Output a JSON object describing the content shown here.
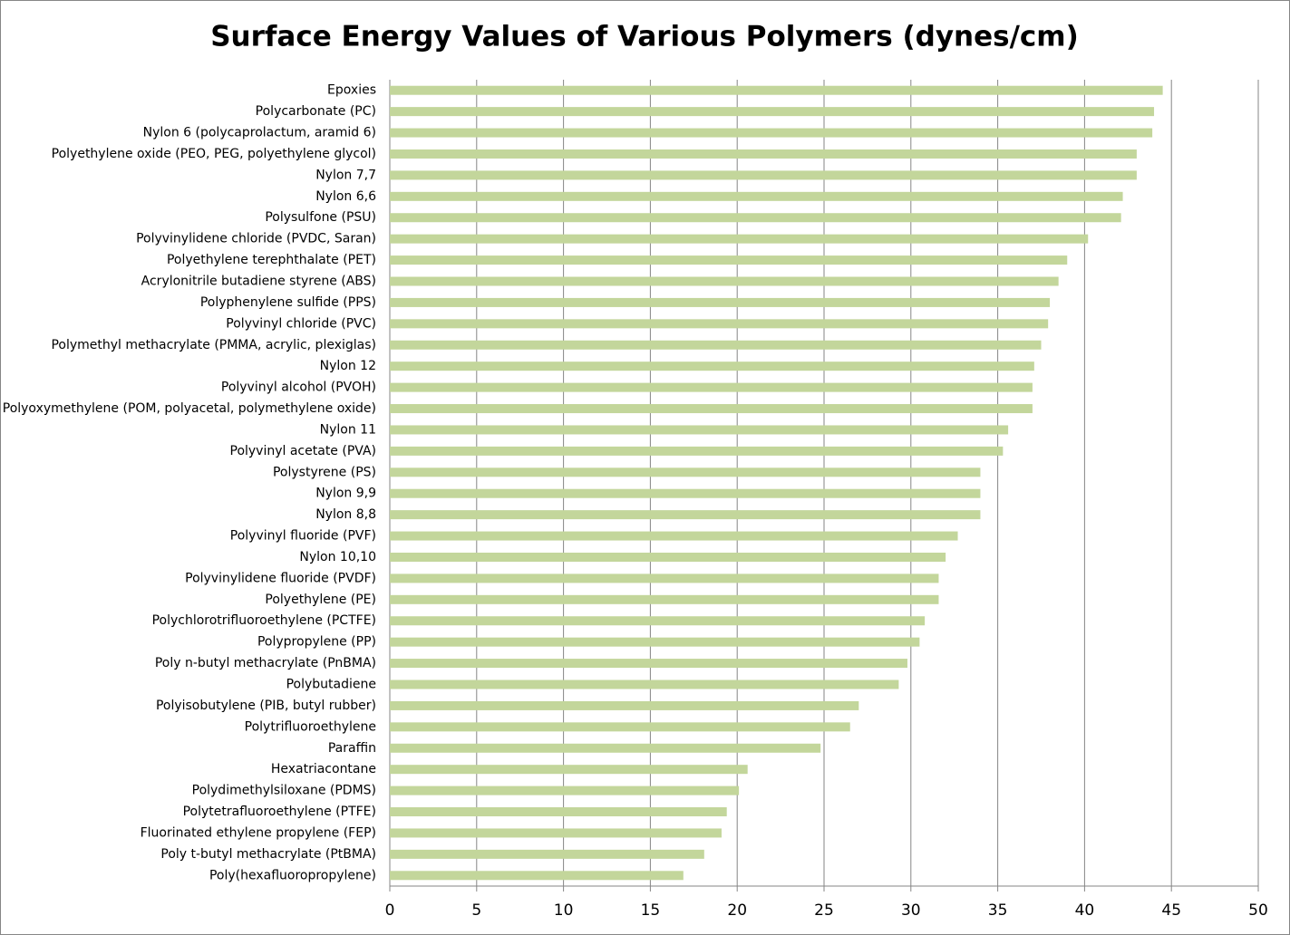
{
  "chart_data": {
    "type": "bar",
    "orientation": "horizontal",
    "title": "Surface Energy Values of Various Polymers (dynes/cm)",
    "categories": [
      "Epoxies",
      "Polycarbonate (PC)",
      "Nylon 6 (polycaprolactum, aramid 6)",
      "Polyethylene oxide (PEO, PEG, polyethylene glycol)",
      "Nylon 7,7",
      "Nylon 6,6",
      "Polysulfone (PSU)",
      "Polyvinylidene chloride (PVDC, Saran)",
      "Polyethylene terephthalate (PET)",
      "Acrylonitrile butadiene styrene (ABS)",
      "Polyphenylene sulfide (PPS)",
      "Polyvinyl chloride (PVC)",
      "Polymethyl methacrylate (PMMA, acrylic, plexiglas)",
      "Nylon 12",
      "Polyvinyl alcohol (PVOH)",
      "Polyoxymethylene (POM, polyacetal, polymethylene oxide)",
      "Nylon 11",
      "Polyvinyl acetate (PVA)",
      "Polystyrene (PS)",
      "Nylon 9,9",
      "Nylon 8,8",
      "Polyvinyl fluoride (PVF)",
      "Nylon 10,10",
      "Polyvinylidene fluoride (PVDF)",
      "Polyethylene (PE)",
      "Polychlorotrifluoroethylene (PCTFE)",
      "Polypropylene (PP)",
      "Poly n-butyl methacrylate (PnBMA)",
      "Polybutadiene",
      "Polyisobutylene (PIB, butyl rubber)",
      "Polytrifluoroethylene",
      "Paraffin",
      "Hexatriacontane",
      "Polydimethylsiloxane (PDMS)",
      "Polytetrafluoroethylene (PTFE)",
      "Fluorinated ethylene propylene (FEP)",
      "Poly t-butyl methacrylate (PtBMA)",
      "Poly(hexafluoropropylene)"
    ],
    "values": [
      44.5,
      44.0,
      43.9,
      43.0,
      43.0,
      42.2,
      42.1,
      40.2,
      39.0,
      38.5,
      38.0,
      37.9,
      37.5,
      37.1,
      37.0,
      37.0,
      35.6,
      35.3,
      34.0,
      34.0,
      34.0,
      32.7,
      32.0,
      31.6,
      31.6,
      30.8,
      30.5,
      29.8,
      29.3,
      27.0,
      26.5,
      24.8,
      20.6,
      20.1,
      19.4,
      19.1,
      18.1,
      16.9
    ],
    "color": "#c3d69b",
    "xlim": [
      0,
      50
    ],
    "xticks": [
      0,
      5,
      10,
      15,
      20,
      25,
      30,
      35,
      40,
      45,
      50
    ],
    "grid": true
  }
}
